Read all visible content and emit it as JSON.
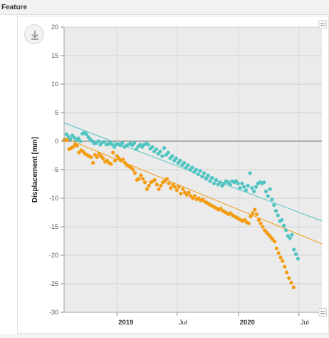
{
  "panel": {
    "title": "Feature"
  },
  "icons": {
    "download": "download-icon",
    "handle": "resize-handle-icon"
  },
  "chart_data": {
    "type": "scatter",
    "title": "",
    "ylabel": "Displacement [mm]",
    "xlabel": "",
    "ylim": [
      -30,
      20
    ],
    "xlim": [
      "2018-07-26",
      "2020-09-08"
    ],
    "yticks": [
      20,
      15,
      10,
      5,
      0,
      -5,
      -10,
      -15,
      -20,
      -25,
      -30
    ],
    "xticks": [
      {
        "label": "2019",
        "date": "2019-01-01",
        "major": true
      },
      {
        "label": "Jul",
        "date": "2019-07-01",
        "major": false
      },
      {
        "label": "2020",
        "date": "2020-01-01",
        "major": true
      },
      {
        "label": "Jul",
        "date": "2020-07-01",
        "major": false
      }
    ],
    "grid": true,
    "legend": "none",
    "zero_line": true,
    "series": [
      {
        "color": "#4fc4c1",
        "trend": {
          "start": [
            "2018-07-26",
            3.2
          ],
          "end": [
            "2020-09-08",
            -14.0
          ]
        },
        "points": [
          [
            "2018-07-28",
            0.3
          ],
          [
            "2018-08-02",
            1.2
          ],
          [
            "2018-08-08",
            0.8
          ],
          [
            "2018-08-14",
            0.4
          ],
          [
            "2018-08-20",
            1.0
          ],
          [
            "2018-08-26",
            0.6
          ],
          [
            "2018-09-01",
            0.2
          ],
          [
            "2018-09-07",
            0.5
          ],
          [
            "2018-09-13",
            0.0
          ],
          [
            "2018-09-19",
            1.3
          ],
          [
            "2018-09-25",
            1.5
          ],
          [
            "2018-10-01",
            1.2
          ],
          [
            "2018-10-07",
            0.7
          ],
          [
            "2018-10-13",
            0.3
          ],
          [
            "2018-10-19",
            0.0
          ],
          [
            "2018-10-25",
            -0.4
          ],
          [
            "2018-10-31",
            -0.3
          ],
          [
            "2018-11-06",
            0.0
          ],
          [
            "2018-11-12",
            -0.6
          ],
          [
            "2018-11-18",
            -0.2
          ],
          [
            "2018-11-24",
            -0.1
          ],
          [
            "2018-11-30",
            -0.6
          ],
          [
            "2018-12-06",
            -0.5
          ],
          [
            "2018-12-12",
            -0.3
          ],
          [
            "2018-12-18",
            -0.6
          ],
          [
            "2018-12-24",
            -1.0
          ],
          [
            "2018-12-30",
            -0.6
          ],
          [
            "2019-01-05",
            -0.5
          ],
          [
            "2019-01-11",
            -0.7
          ],
          [
            "2019-01-17",
            -0.3
          ],
          [
            "2019-01-23",
            -1.0
          ],
          [
            "2019-01-29",
            -0.8
          ],
          [
            "2019-02-04",
            -0.6
          ],
          [
            "2019-02-10",
            -0.4
          ],
          [
            "2019-02-16",
            -0.7
          ],
          [
            "2019-02-22",
            -0.3
          ],
          [
            "2019-02-28",
            -1.4
          ],
          [
            "2019-03-06",
            -0.9
          ],
          [
            "2019-03-12",
            -0.6
          ],
          [
            "2019-03-18",
            -1.0
          ],
          [
            "2019-03-24",
            -0.6
          ],
          [
            "2019-03-30",
            -0.4
          ],
          [
            "2019-04-05",
            -0.6
          ],
          [
            "2019-04-11",
            -1.3
          ],
          [
            "2019-04-17",
            -1.0
          ],
          [
            "2019-04-23",
            -1.8
          ],
          [
            "2019-04-29",
            -1.4
          ],
          [
            "2019-05-05",
            -2.2
          ],
          [
            "2019-05-11",
            -1.8
          ],
          [
            "2019-05-17",
            -2.6
          ],
          [
            "2019-05-23",
            -1.2
          ],
          [
            "2019-05-29",
            -2.4
          ],
          [
            "2019-06-04",
            -2.0
          ],
          [
            "2019-06-10",
            -3.0
          ],
          [
            "2019-06-16",
            -2.6
          ],
          [
            "2019-06-22",
            -3.4
          ],
          [
            "2019-06-28",
            -3.0
          ],
          [
            "2019-07-04",
            -3.8
          ],
          [
            "2019-07-10",
            -3.4
          ],
          [
            "2019-07-16",
            -4.2
          ],
          [
            "2019-07-22",
            -3.8
          ],
          [
            "2019-07-28",
            -4.6
          ],
          [
            "2019-08-03",
            -4.2
          ],
          [
            "2019-08-09",
            -5.0
          ],
          [
            "2019-08-15",
            -4.6
          ],
          [
            "2019-08-21",
            -5.4
          ],
          [
            "2019-08-27",
            -5.0
          ],
          [
            "2019-09-02",
            -5.8
          ],
          [
            "2019-09-08",
            -5.2
          ],
          [
            "2019-09-14",
            -6.2
          ],
          [
            "2019-09-20",
            -5.6
          ],
          [
            "2019-09-26",
            -6.6
          ],
          [
            "2019-10-02",
            -6.0
          ],
          [
            "2019-10-08",
            -7.0
          ],
          [
            "2019-10-14",
            -6.4
          ],
          [
            "2019-10-20",
            -7.4
          ],
          [
            "2019-10-26",
            -6.8
          ],
          [
            "2019-11-01",
            -7.6
          ],
          [
            "2019-11-07",
            -7.2
          ],
          [
            "2019-11-13",
            -7.8
          ],
          [
            "2019-11-19",
            -7.4
          ],
          [
            "2019-11-25",
            -7.0
          ],
          [
            "2019-12-01",
            -7.2
          ],
          [
            "2019-12-07",
            -7.6
          ],
          [
            "2019-12-13",
            -7.0
          ],
          [
            "2019-12-19",
            -7.2
          ],
          [
            "2019-12-25",
            -7.0
          ],
          [
            "2019-12-31",
            -7.4
          ],
          [
            "2020-01-06",
            -8.2
          ],
          [
            "2020-01-12",
            -7.4
          ],
          [
            "2020-01-18",
            -8.0
          ],
          [
            "2020-01-24",
            -8.6
          ],
          [
            "2020-01-30",
            -7.8
          ],
          [
            "2020-02-05",
            -5.6
          ],
          [
            "2020-02-11",
            -8.2
          ],
          [
            "2020-02-17",
            -8.8
          ],
          [
            "2020-02-23",
            -8.0
          ],
          [
            "2020-02-29",
            -7.4
          ],
          [
            "2020-03-06",
            -7.2
          ],
          [
            "2020-03-12",
            -7.4
          ],
          [
            "2020-03-18",
            -7.2
          ],
          [
            "2020-03-24",
            -8.8
          ],
          [
            "2020-03-30",
            -9.6
          ],
          [
            "2020-04-05",
            -8.4
          ],
          [
            "2020-04-11",
            -10.2
          ],
          [
            "2020-04-17",
            -11.2
          ],
          [
            "2020-04-23",
            -12.2
          ],
          [
            "2020-04-29",
            -13.0
          ],
          [
            "2020-05-05",
            -14.0
          ],
          [
            "2020-05-11",
            -13.8
          ],
          [
            "2020-05-17",
            -14.8
          ],
          [
            "2020-05-23",
            -15.6
          ],
          [
            "2020-05-29",
            -16.6
          ],
          [
            "2020-06-04",
            -17.0
          ],
          [
            "2020-06-10",
            -16.4
          ],
          [
            "2020-06-16",
            -19.0
          ],
          [
            "2020-06-22",
            -19.8
          ],
          [
            "2020-06-28",
            -20.6
          ]
        ]
      },
      {
        "color": "#f39c12",
        "trend": {
          "start": [
            "2018-07-26",
            0.6
          ],
          "end": [
            "2020-09-08",
            -18.0
          ]
        },
        "points": [
          [
            "2018-07-26",
            0.2
          ],
          [
            "2018-07-30",
            0.2
          ],
          [
            "2018-08-04",
            0.2
          ],
          [
            "2018-08-10",
            -1.4
          ],
          [
            "2018-08-16",
            -1.2
          ],
          [
            "2018-08-22",
            -1.0
          ],
          [
            "2018-08-28",
            -0.6
          ],
          [
            "2018-09-03",
            -0.8
          ],
          [
            "2018-09-09",
            -2.0
          ],
          [
            "2018-09-15",
            -1.6
          ],
          [
            "2018-09-21",
            -1.8
          ],
          [
            "2018-09-27",
            -2.2
          ],
          [
            "2018-10-03",
            -2.4
          ],
          [
            "2018-10-09",
            -2.6
          ],
          [
            "2018-10-15",
            -2.8
          ],
          [
            "2018-10-21",
            -3.8
          ],
          [
            "2018-10-27",
            -2.4
          ],
          [
            "2018-11-02",
            -2.8
          ],
          [
            "2018-11-08",
            -2.2
          ],
          [
            "2018-11-14",
            -2.6
          ],
          [
            "2018-11-20",
            -3.0
          ],
          [
            "2018-11-26",
            -3.6
          ],
          [
            "2018-12-02",
            -3.4
          ],
          [
            "2018-12-08",
            -3.8
          ],
          [
            "2018-12-14",
            -4.0
          ],
          [
            "2018-12-20",
            -2.0
          ],
          [
            "2018-12-26",
            -3.4
          ],
          [
            "2019-01-01",
            -2.6
          ],
          [
            "2019-01-07",
            -3.0
          ],
          [
            "2019-01-13",
            -3.4
          ],
          [
            "2019-01-19",
            -3.2
          ],
          [
            "2019-01-25",
            -3.8
          ],
          [
            "2019-01-31",
            -4.2
          ],
          [
            "2019-02-06",
            -4.4
          ],
          [
            "2019-02-12",
            -4.6
          ],
          [
            "2019-02-18",
            -5.0
          ],
          [
            "2019-02-24",
            -5.6
          ],
          [
            "2019-03-02",
            -6.8
          ],
          [
            "2019-03-08",
            -6.6
          ],
          [
            "2019-03-14",
            -6.0
          ],
          [
            "2019-03-20",
            -6.6
          ],
          [
            "2019-03-26",
            -7.2
          ],
          [
            "2019-04-01",
            -8.4
          ],
          [
            "2019-04-07",
            -7.8
          ],
          [
            "2019-04-13",
            -7.2
          ],
          [
            "2019-04-19",
            -7.0
          ],
          [
            "2019-04-25",
            -6.8
          ],
          [
            "2019-05-01",
            -7.6
          ],
          [
            "2019-05-07",
            -8.4
          ],
          [
            "2019-05-13",
            -7.8
          ],
          [
            "2019-05-19",
            -7.2
          ],
          [
            "2019-05-25",
            -7.0
          ],
          [
            "2019-05-31",
            -6.6
          ],
          [
            "2019-06-06",
            -7.4
          ],
          [
            "2019-06-12",
            -8.2
          ],
          [
            "2019-06-18",
            -7.6
          ],
          [
            "2019-06-24",
            -8.0
          ],
          [
            "2019-06-30",
            -8.6
          ],
          [
            "2019-07-06",
            -8.0
          ],
          [
            "2019-07-12",
            -9.2
          ],
          [
            "2019-07-18",
            -8.4
          ],
          [
            "2019-07-24",
            -9.0
          ],
          [
            "2019-07-30",
            -9.4
          ],
          [
            "2019-08-05",
            -9.0
          ],
          [
            "2019-08-11",
            -9.6
          ],
          [
            "2019-08-17",
            -10.0
          ],
          [
            "2019-08-23",
            -9.6
          ],
          [
            "2019-08-29",
            -10.2
          ],
          [
            "2019-09-04",
            -10.0
          ],
          [
            "2019-09-10",
            -10.4
          ],
          [
            "2019-09-16",
            -10.2
          ],
          [
            "2019-09-22",
            -10.6
          ],
          [
            "2019-09-28",
            -10.8
          ],
          [
            "2019-10-04",
            -11.0
          ],
          [
            "2019-10-10",
            -11.2
          ],
          [
            "2019-10-16",
            -11.4
          ],
          [
            "2019-10-22",
            -11.6
          ],
          [
            "2019-10-28",
            -11.8
          ],
          [
            "2019-11-03",
            -12.0
          ],
          [
            "2019-11-09",
            -11.8
          ],
          [
            "2019-11-15",
            -12.2
          ],
          [
            "2019-11-21",
            -12.4
          ],
          [
            "2019-11-27",
            -12.6
          ],
          [
            "2019-12-03",
            -12.8
          ],
          [
            "2019-12-09",
            -12.6
          ],
          [
            "2019-12-15",
            -13.0
          ],
          [
            "2019-12-21",
            -13.2
          ],
          [
            "2019-12-27",
            -13.4
          ],
          [
            "2020-01-02",
            -13.6
          ],
          [
            "2020-01-08",
            -13.8
          ],
          [
            "2020-01-14",
            -14.0
          ],
          [
            "2020-01-20",
            -13.8
          ],
          [
            "2020-01-26",
            -14.2
          ],
          [
            "2020-02-01",
            -14.4
          ],
          [
            "2020-02-07",
            -13.2
          ],
          [
            "2020-02-13",
            -12.6
          ],
          [
            "2020-02-19",
            -12.0
          ],
          [
            "2020-02-25",
            -12.8
          ],
          [
            "2020-03-02",
            -13.8
          ],
          [
            "2020-03-08",
            -14.4
          ],
          [
            "2020-03-14",
            -15.0
          ],
          [
            "2020-03-20",
            -15.6
          ],
          [
            "2020-03-26",
            -16.0
          ],
          [
            "2020-04-01",
            -16.4
          ],
          [
            "2020-04-07",
            -16.8
          ],
          [
            "2020-04-13",
            -17.2
          ],
          [
            "2020-04-19",
            -17.6
          ],
          [
            "2020-04-25",
            -18.8
          ],
          [
            "2020-05-01",
            -19.6
          ],
          [
            "2020-05-07",
            -20.4
          ],
          [
            "2020-05-13",
            -21.0
          ],
          [
            "2020-05-19",
            -22.0
          ],
          [
            "2020-05-25",
            -23.0
          ],
          [
            "2020-06-01",
            -24.0
          ],
          [
            "2020-06-08",
            -24.8
          ],
          [
            "2020-06-15",
            -25.6
          ]
        ]
      }
    ]
  }
}
